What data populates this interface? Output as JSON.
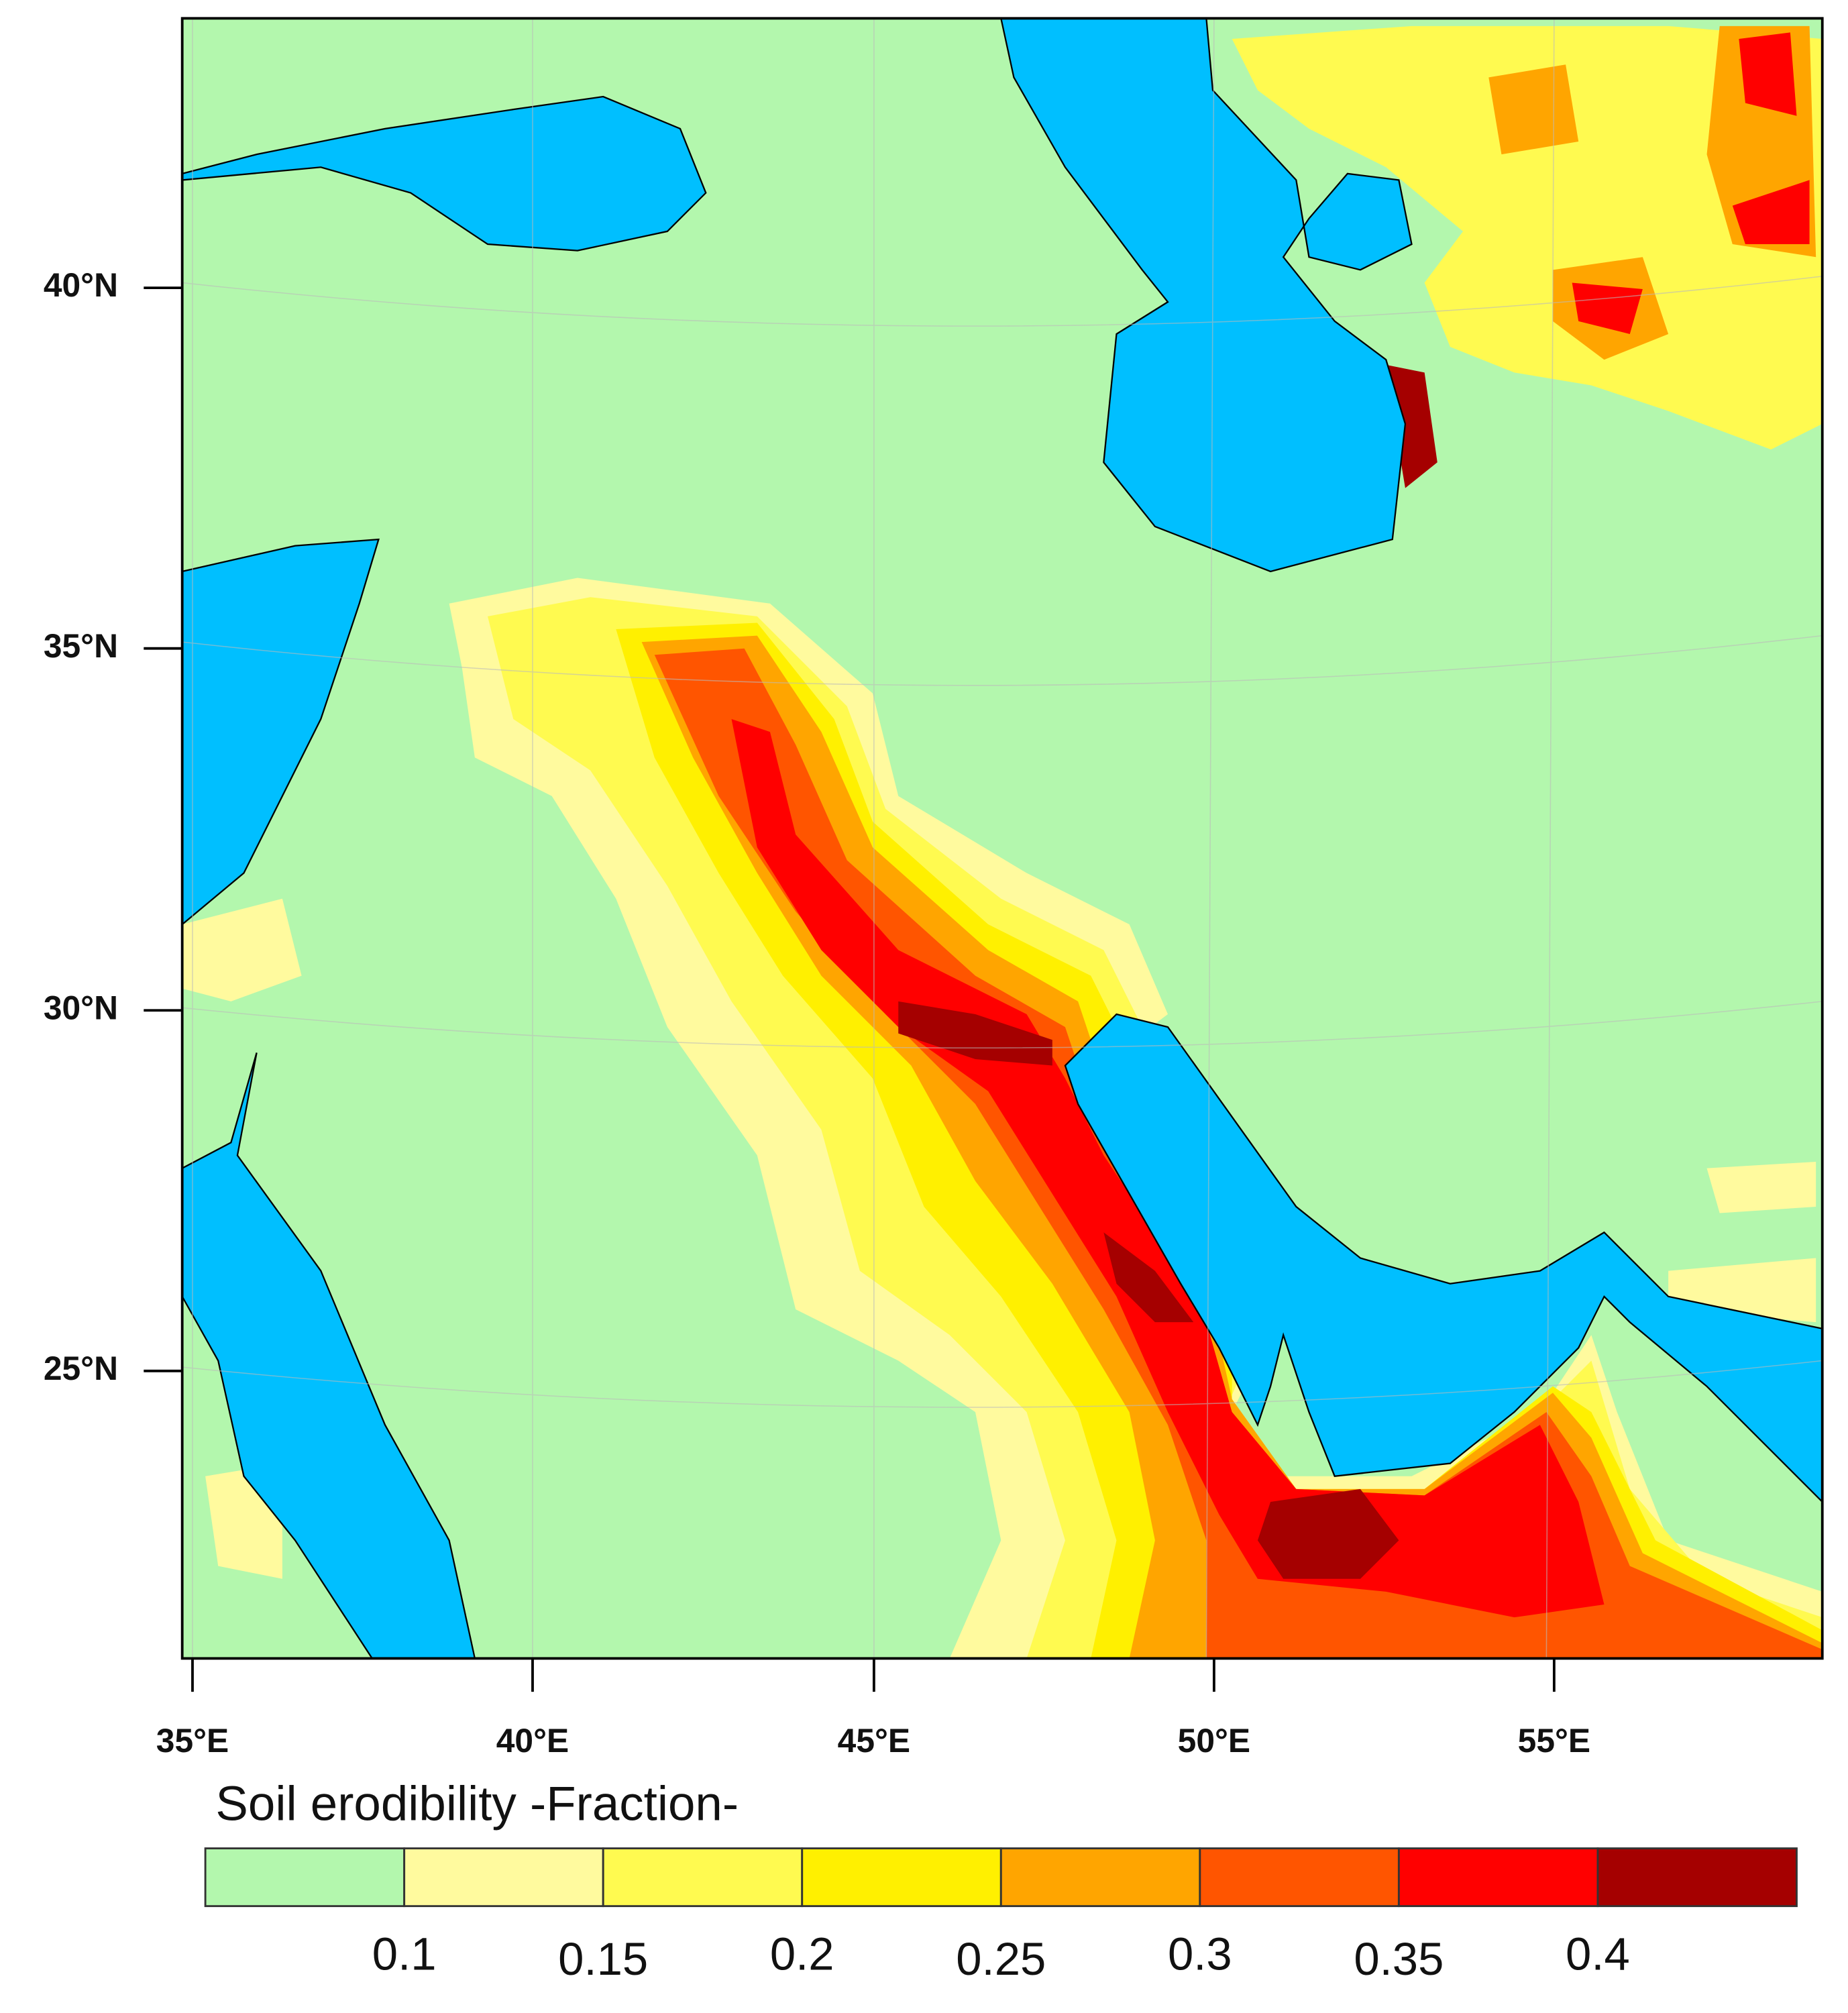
{
  "map": {
    "lon_ticks": [
      "35°E",
      "40°E",
      "45°E",
      "50°E",
      "55°E"
    ],
    "lat_ticks": [
      "40°N",
      "35°N",
      "30°N",
      "25°N"
    ]
  },
  "colorbar": {
    "title": "Soil erodibility -Fraction-",
    "levels": [
      0.1,
      0.15,
      0.2,
      0.25,
      0.3,
      0.35,
      0.4
    ],
    "colors": [
      "#b3f7ad",
      "#fffa9e",
      "#fffa50",
      "#fff000",
      "#ffa500",
      "#ff5500",
      "#ff0000",
      "#a50000"
    ]
  }
}
